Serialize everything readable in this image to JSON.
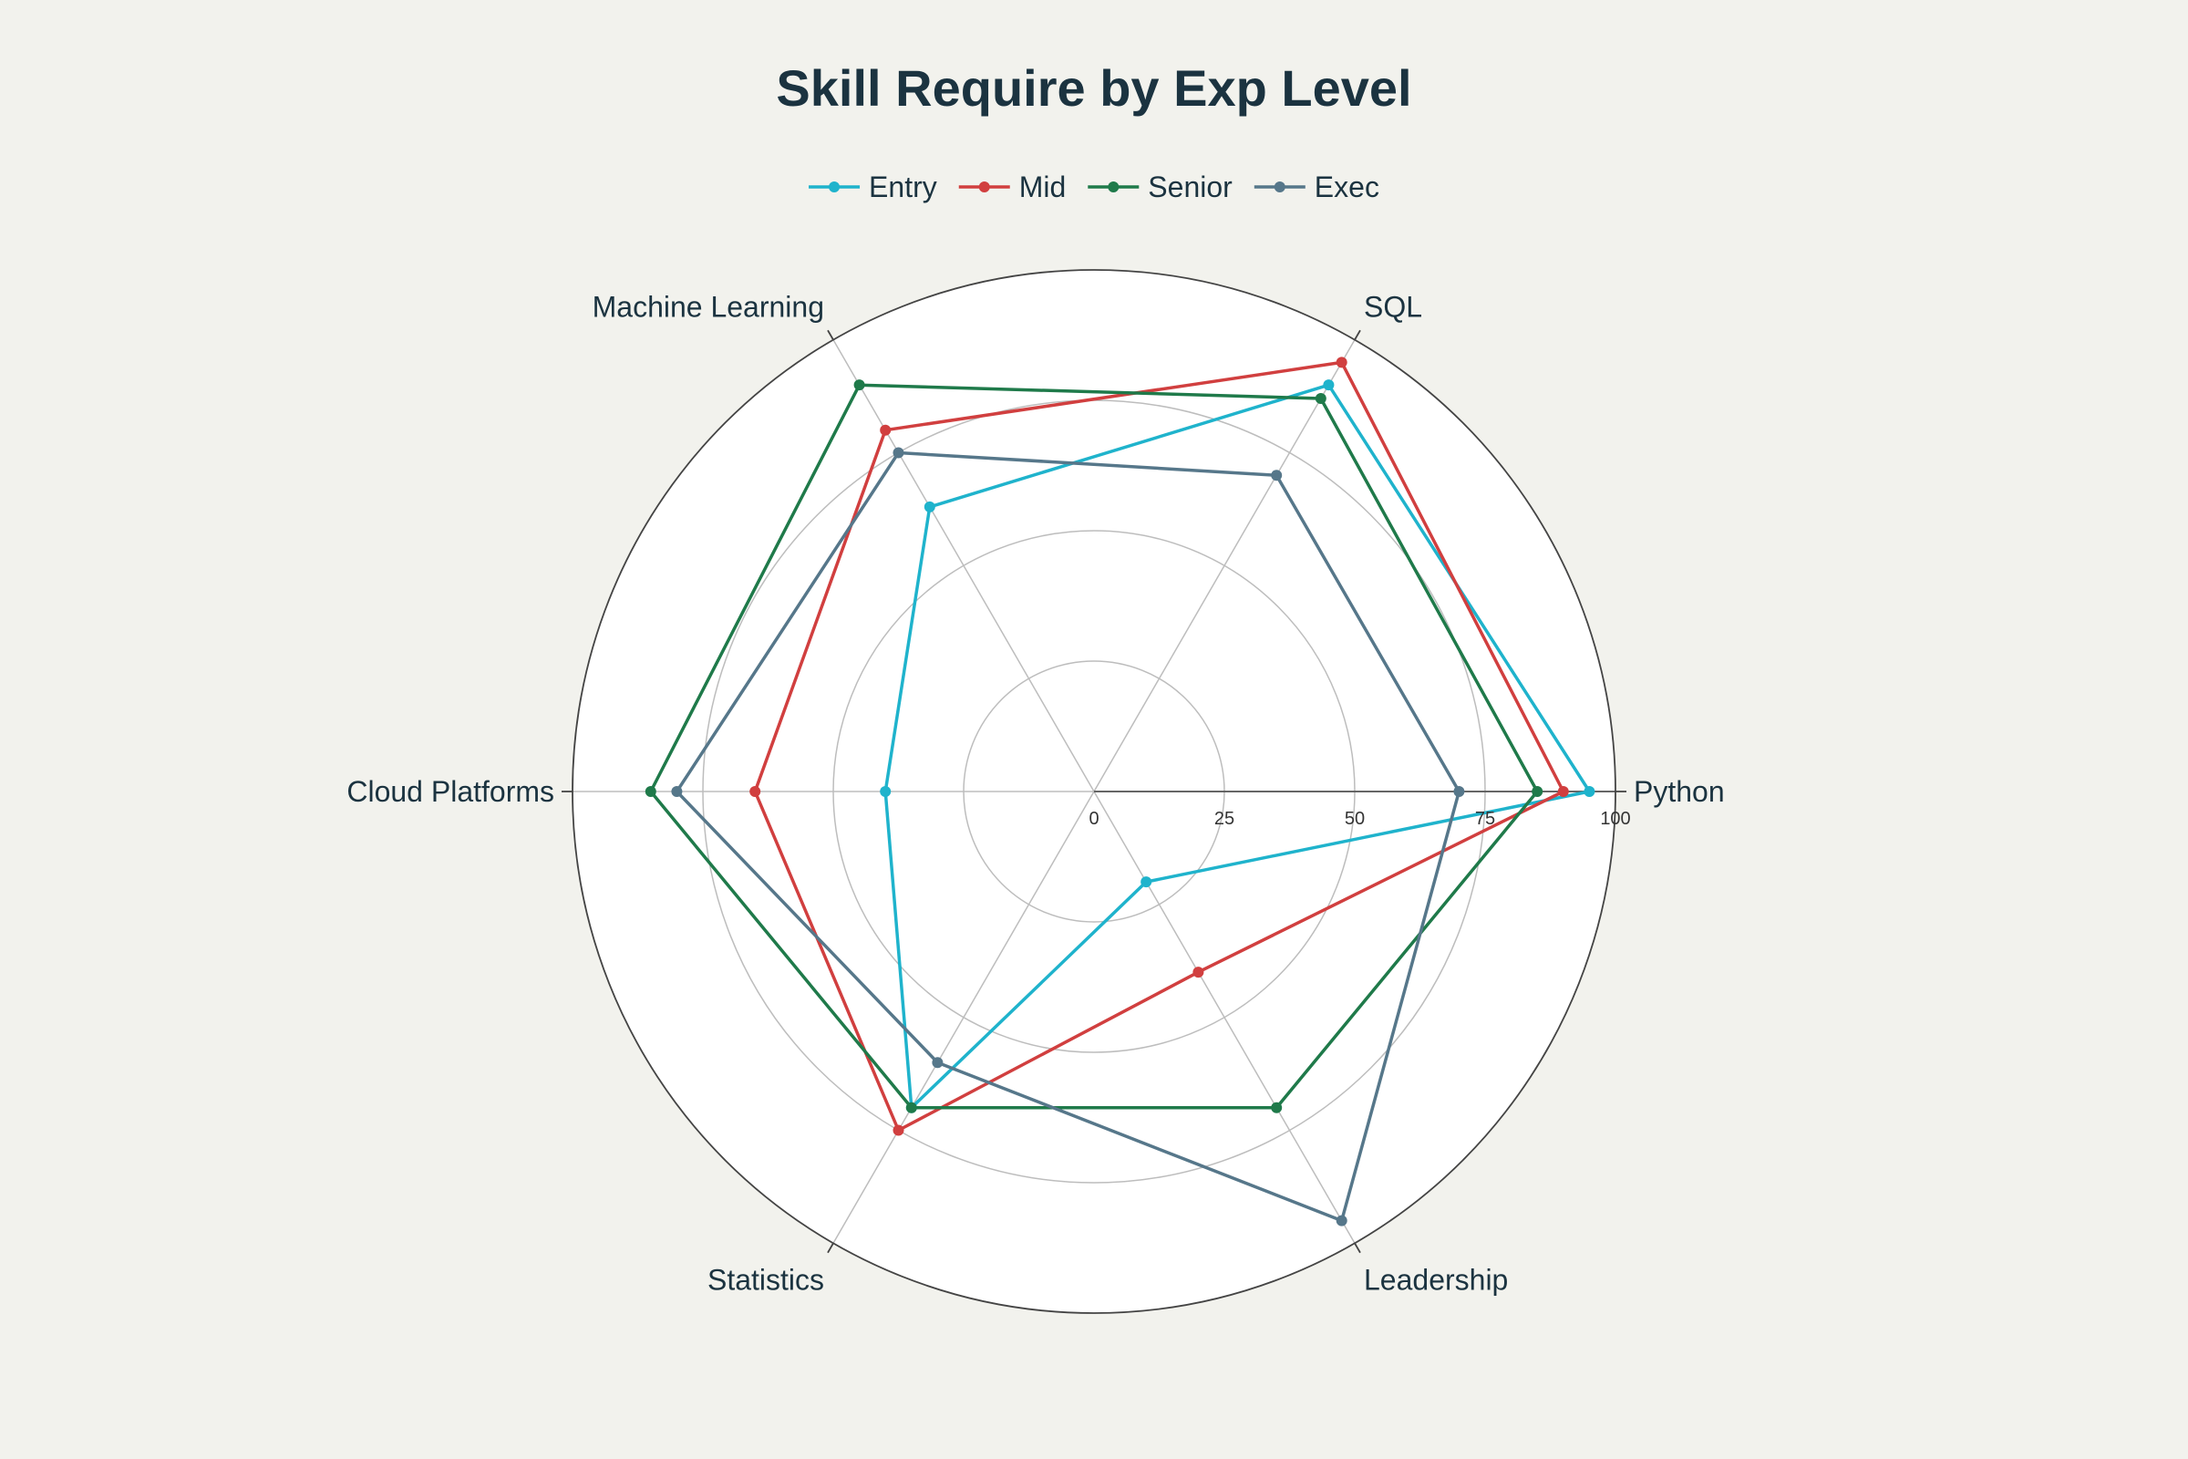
{
  "chart_data": {
    "type": "radar",
    "title": "Skill Require by Exp Level",
    "axes": [
      "Python",
      "SQL",
      "Machine Learning",
      "Cloud Platforms",
      "Statistics",
      "Leadership"
    ],
    "radial_range": [
      0,
      100
    ],
    "radial_ticks": [
      0,
      25,
      50,
      75,
      100
    ],
    "legend_position": "top-center",
    "grid": true,
    "series": [
      {
        "name": "Entry",
        "color": "#1fb3cc",
        "values": [
          95,
          90,
          63,
          40,
          70,
          20
        ]
      },
      {
        "name": "Mid",
        "color": "#d13f3f",
        "values": [
          90,
          95,
          80,
          65,
          75,
          40
        ]
      },
      {
        "name": "Senior",
        "color": "#1f7a4a",
        "values": [
          85,
          87,
          90,
          85,
          70,
          70
        ]
      },
      {
        "name": "Exec",
        "color": "#56778a",
        "values": [
          70,
          70,
          75,
          80,
          60,
          95
        ]
      }
    ]
  }
}
